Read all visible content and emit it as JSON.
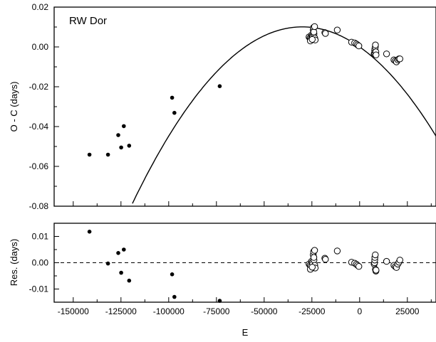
{
  "chart_data": [
    {
      "type": "scatter",
      "title": "RW Dor",
      "xlabel": "",
      "ylabel": "O - C (days)",
      "xlim": [
        -160000,
        40000
      ],
      "ylim": [
        -0.08,
        0.02
      ],
      "y_ticks": [
        "0.02",
        "0.00",
        "-0.02",
        "-0.04",
        "-0.06",
        "-0.08"
      ],
      "y_tick_values": [
        0.02,
        0.0,
        -0.02,
        -0.04,
        -0.06,
        -0.08
      ],
      "grid": false,
      "series": [
        {
          "marker": "filled-circle",
          "x": [
            -141500,
            -131800,
            -126400,
            -124900,
            -123500,
            -120700,
            -98200,
            -97000,
            -73300
          ],
          "y": [
            -0.0541,
            -0.0541,
            -0.0443,
            -0.0505,
            -0.0398,
            -0.0496,
            -0.0255,
            -0.0331,
            -0.0197
          ]
        },
        {
          "marker": "open-circle",
          "x": [
            -26500,
            -26000,
            -25600,
            -25200,
            -24900,
            -24600,
            -24300,
            -24100,
            -23900,
            -23700,
            -23500,
            -23300,
            -25800,
            -24800,
            -24000,
            -23600,
            -18200,
            -17900,
            -11700,
            -4200,
            -2600,
            -1700,
            -1100,
            -400,
            7600,
            7800,
            7900,
            8000,
            8200,
            8300,
            8500,
            8600,
            14100,
            18000,
            18700,
            19300,
            20000,
            20600,
            21100
          ],
          "y": [
            0.005,
            0.0045,
            0.004,
            0.006,
            0.0055,
            0.005,
            0.0085,
            0.0098,
            0.0065,
            0.0042,
            0.0045,
            0.0035,
            0.003,
            0.0038,
            0.0075,
            0.0102,
            0.0072,
            0.0068,
            0.0085,
            0.0024,
            0.002,
            0.0015,
            0.001,
            0.0005,
            -0.0035,
            -0.003,
            -0.002,
            -0.001,
            0.0,
            0.001,
            -0.0025,
            -0.004,
            -0.0035,
            -0.0065,
            -0.007,
            -0.0075,
            -0.0065,
            -0.006,
            -0.006
          ]
        }
      ],
      "fit": {
        "type": "quadratic",
        "coefficients": {
          "a": -1.12e-11,
          "b": -6.72e-07,
          "c": 0.0
        }
      }
    },
    {
      "type": "scatter",
      "title": "",
      "xlabel": "E",
      "ylabel": "Res. (days)",
      "xlim": [
        -160000,
        40000
      ],
      "ylim": [
        -0.015,
        0.015
      ],
      "x_ticks": [
        "-150000",
        "-125000",
        "-100000",
        "-75000",
        "-50000",
        "-25000",
        "0",
        "25000"
      ],
      "x_tick_values": [
        -150000,
        -125000,
        -100000,
        -75000,
        -50000,
        -25000,
        0,
        25000
      ],
      "y_ticks": [
        "0.01",
        "0.00",
        "-0.01"
      ],
      "y_tick_values": [
        0.01,
        0.0,
        -0.01
      ],
      "grid": false,
      "reference_line": {
        "y": 0.0,
        "style": "dashed"
      },
      "series": [
        {
          "marker": "filled-circle",
          "x": [
            -141500,
            -131800,
            -126400,
            -124900,
            -123500,
            -120700,
            -98200,
            -97000,
            -73300
          ],
          "y": [
            0.0118,
            -0.0003,
            0.0037,
            -0.0038,
            0.005,
            -0.0068,
            -0.0044,
            -0.013,
            -0.0145
          ]
        },
        {
          "marker": "open-circle",
          "x": [
            -26500,
            -26000,
            -25600,
            -25200,
            -24900,
            -24600,
            -24300,
            -24100,
            -23900,
            -23700,
            -23500,
            -23300,
            -25800,
            -24800,
            -24000,
            -23600,
            -18200,
            -17900,
            -11700,
            -4200,
            -2600,
            -1700,
            -1100,
            -400,
            7600,
            7800,
            7900,
            8000,
            8200,
            8300,
            8500,
            8600,
            14100,
            18000,
            18700,
            19300,
            20000,
            20600,
            21100
          ],
          "y": [
            -0.0005,
            -0.001,
            -0.0015,
            0.0005,
            0.0,
            -0.0005,
            0.003,
            0.0042,
            0.001,
            -0.0012,
            -0.001,
            -0.002,
            -0.0025,
            -0.0017,
            0.002,
            0.0047,
            0.0017,
            0.0013,
            0.0045,
            0.0002,
            -0.0002,
            -0.0006,
            -0.001,
            -0.0014,
            -0.0005,
            0.0,
            0.001,
            0.002,
            0.003,
            -0.0025,
            -0.0032,
            -0.0028,
            0.0005,
            -0.001,
            -0.0015,
            -0.0018,
            -0.0005,
            0.0002,
            0.001
          ]
        }
      ]
    }
  ]
}
